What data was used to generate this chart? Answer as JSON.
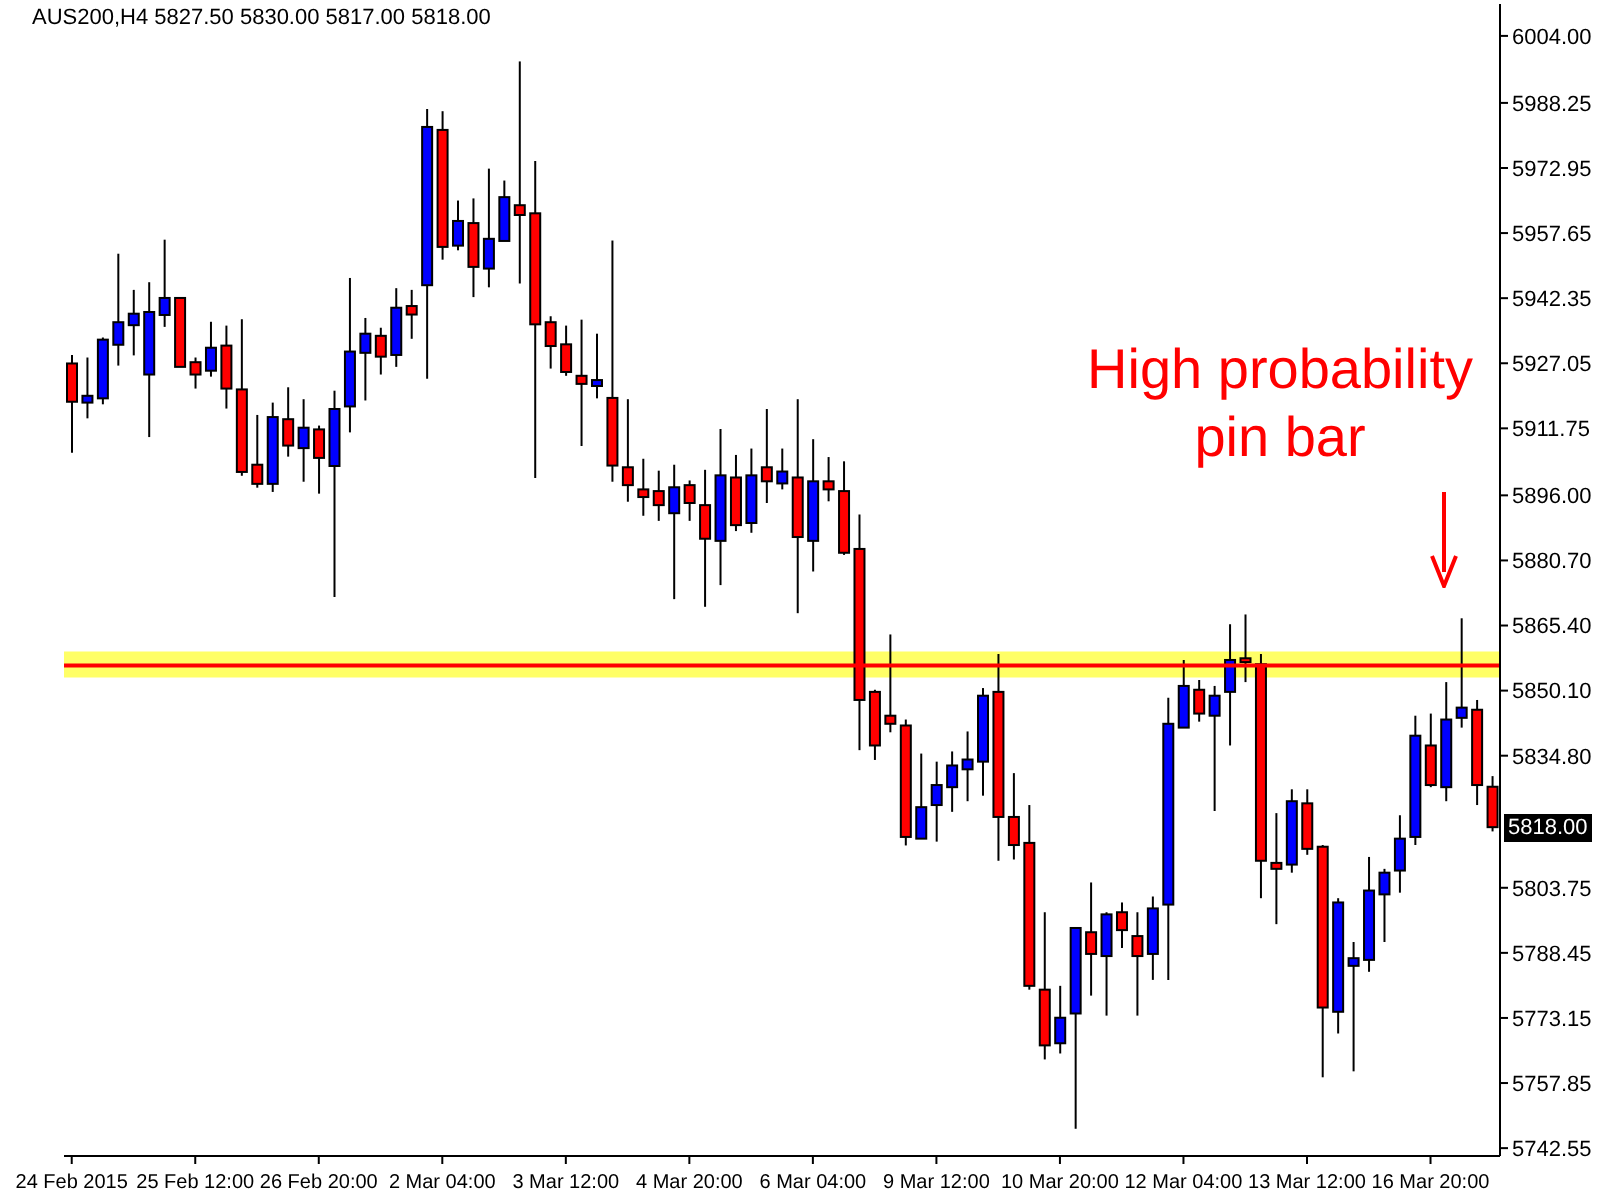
{
  "chart_data": {
    "type": "candlestick",
    "title": "AUS200,H4  5827.50 5830.00 5817.00 5818.00",
    "categories": [
      "24 Feb 2015",
      null,
      null,
      null,
      null,
      null,
      null,
      null,
      "25 Feb 12:00",
      null,
      null,
      null,
      null,
      null,
      null,
      null,
      "26 Feb 20:00",
      null,
      null,
      null,
      null,
      null,
      null,
      null,
      "2 Mar 04:00",
      null,
      null,
      null,
      null,
      null,
      null,
      null,
      "3 Mar 12:00",
      null,
      null,
      null,
      null,
      null,
      null,
      null,
      "4 Mar 20:00",
      null,
      null,
      null,
      null,
      null,
      null,
      null,
      "6 Mar 04:00",
      null,
      null,
      null,
      null,
      null,
      null,
      null,
      "9 Mar 12:00",
      null,
      null,
      null,
      null,
      null,
      null,
      null,
      "10 Mar 20:00",
      null,
      null,
      null,
      null,
      null,
      null,
      null,
      "12 Mar 04:00",
      null,
      null,
      null,
      null,
      null,
      null,
      null,
      "13 Mar 12:00",
      null,
      null,
      null,
      null,
      null,
      null,
      null,
      "16 Mar 20:00",
      null,
      null,
      null,
      null
    ],
    "ohlc": [
      [
        5927,
        5929,
        5906,
        5918
      ],
      [
        5917.8,
        5928.4,
        5914.1,
        5919.4
      ],
      [
        5918.8,
        5933.1,
        5917.4,
        5932.6
      ],
      [
        5931.4,
        5952.8,
        5926.5,
        5936.7
      ],
      [
        5936,
        5944.3,
        5928.9,
        5938.7
      ],
      [
        5924.4,
        5946.1,
        5909.7,
        5939.1
      ],
      [
        5938.4,
        5956.1,
        5935.6,
        5942.4
      ],
      [
        5942.4,
        5942.4,
        5926.2,
        5926.2
      ],
      [
        5927.3,
        5928.4,
        5921.1,
        5924.4
      ],
      [
        5925.3,
        5936.8,
        5923.9,
        5930.7
      ],
      [
        5931.2,
        5935.9,
        5916.4,
        5921.1
      ],
      [
        5920.9,
        5937.4,
        5900.6,
        5901.5
      ],
      [
        5903.2,
        5914.9,
        5897.8,
        5898.7
      ],
      [
        5898.7,
        5917.8,
        5896.8,
        5914.4
      ],
      [
        5913.9,
        5921.4,
        5905.1,
        5907.7
      ],
      [
        5907.1,
        5918.6,
        5899.2,
        5911.9
      ],
      [
        5911.5,
        5912.4,
        5896.4,
        5904.8
      ],
      [
        5902.9,
        5920.6,
        5872.1,
        5916.3
      ],
      [
        5916.9,
        5947.1,
        5910.8,
        5929.8
      ],
      [
        5929.5,
        5937.7,
        5918.3,
        5934
      ],
      [
        5933.5,
        5935.4,
        5924.4,
        5928.6
      ],
      [
        5929,
        5944.7,
        5926.2,
        5940.1
      ],
      [
        5940.5,
        5944.3,
        5932.8,
        5938.5
      ],
      [
        5945.4,
        5986.8,
        5923.4,
        5982.6
      ],
      [
        5981.9,
        5986.3,
        5951.4,
        5954.4
      ],
      [
        5954.7,
        5965.3,
        5953.6,
        5960.5
      ],
      [
        5960,
        5965.8,
        5942.6,
        5949.7
      ],
      [
        5949.3,
        5972.8,
        5944.9,
        5956.3
      ],
      [
        5955.8,
        5970,
        5955.8,
        5966.1
      ],
      [
        5964.2,
        5998,
        5945.8,
        5961.9
      ],
      [
        5962.3,
        5974.6,
        5900.1,
        5936.2
      ],
      [
        5936.7,
        5938.1,
        5925.8,
        5931.1
      ],
      [
        5931.5,
        5935.9,
        5924.1,
        5925
      ],
      [
        5924.1,
        5937.3,
        5907.6,
        5922.2
      ],
      [
        5921.7,
        5934,
        5918.8,
        5923.1
      ],
      [
        5918.9,
        5955.9,
        5899.2,
        5903
      ],
      [
        5902.6,
        5918.6,
        5894.5,
        5898.4
      ],
      [
        5897.4,
        5904.6,
        5891.2,
        5895.6
      ],
      [
        5897,
        5901.8,
        5890,
        5893.7
      ],
      [
        5891.8,
        5903.2,
        5871.6,
        5897.9
      ],
      [
        5898.4,
        5899.5,
        5890,
        5894.2
      ],
      [
        5893.7,
        5902,
        5869.8,
        5885.8
      ],
      [
        5885.3,
        5911.6,
        5874.9,
        5900.7
      ],
      [
        5900.2,
        5905.5,
        5887.6,
        5889
      ],
      [
        5889.5,
        5907,
        5887.2,
        5900.7
      ],
      [
        5902.6,
        5916.3,
        5894.2,
        5899.3
      ],
      [
        5898.8,
        5907,
        5897.4,
        5901.6
      ],
      [
        5900.2,
        5918.6,
        5868.3,
        5886.2
      ],
      [
        5885.3,
        5909.2,
        5878.1,
        5899.3
      ],
      [
        5899.3,
        5905,
        5894.6,
        5897.4
      ],
      [
        5897,
        5904,
        5882,
        5882.5
      ],
      [
        5883.4,
        5891.5,
        5836.1,
        5847.9
      ],
      [
        5849.8,
        5850.3,
        5833.8,
        5837.2
      ],
      [
        5844.2,
        5863.3,
        5840.3,
        5842.3
      ],
      [
        5841.9,
        5843.3,
        5813.7,
        5815.7
      ],
      [
        5815.3,
        5835.3,
        5815.3,
        5822.7
      ],
      [
        5823.2,
        5833.4,
        5814.6,
        5827.9
      ],
      [
        5827.4,
        5835.8,
        5821.6,
        5832.5
      ],
      [
        5831.6,
        5840.5,
        5824.1,
        5833.9
      ],
      [
        5833.4,
        5850.7,
        5825.4,
        5848.9
      ],
      [
        5849.8,
        5858.7,
        5810.1,
        5820.4
      ],
      [
        5820.4,
        5830.7,
        5810.4,
        5813.8
      ],
      [
        5814.3,
        5823.2,
        5779.8,
        5780.7
      ],
      [
        5779.8,
        5798,
        5763.4,
        5766.7
      ],
      [
        5767.2,
        5780.7,
        5764.8,
        5773.2
      ],
      [
        5774.2,
        5794.3,
        5747.1,
        5794.3
      ],
      [
        5793.3,
        5805,
        5778.4,
        5788.2
      ],
      [
        5787.7,
        5798,
        5773.7,
        5797.5
      ],
      [
        5798,
        5800.3,
        5789.6,
        5793.8
      ],
      [
        5792.4,
        5798,
        5773.7,
        5787.7
      ],
      [
        5788.2,
        5801.7,
        5782.1,
        5798.9
      ],
      [
        5799.8,
        5848.4,
        5782.1,
        5842.3
      ],
      [
        5841.4,
        5857.3,
        5841.4,
        5851.2
      ],
      [
        5850.3,
        5852.6,
        5842.8,
        5844.7
      ],
      [
        5844.2,
        5851.2,
        5821.8,
        5848.9
      ],
      [
        5849.8,
        5865.7,
        5837.2,
        5857.3
      ],
      [
        5857.7,
        5868,
        5852.1,
        5856.8
      ],
      [
        5856.3,
        5858.7,
        5801.3,
        5810.1
      ],
      [
        5809.6,
        5821.3,
        5795.2,
        5808.2
      ],
      [
        5809.2,
        5826.9,
        5807.3,
        5824.1
      ],
      [
        5823.6,
        5826.9,
        5811.5,
        5812.9
      ],
      [
        5813.4,
        5813.8,
        5759.2,
        5775.6
      ],
      [
        5774.6,
        5801.3,
        5769.5,
        5800.3
      ],
      [
        5785.4,
        5791,
        5760.6,
        5787.2
      ],
      [
        5786.8,
        5811,
        5784,
        5803.1
      ],
      [
        5802.2,
        5808.2,
        5791,
        5807.3
      ],
      [
        5807.8,
        5820.8,
        5802.6,
        5815.3
      ],
      [
        5815.7,
        5844.2,
        5813.8,
        5839.5
      ],
      [
        5837.2,
        5844.7,
        5827.4,
        5827.9
      ],
      [
        5827.4,
        5852.1,
        5824.1,
        5843.3
      ],
      [
        5843.7,
        5867.1,
        5841.4,
        5846.1
      ],
      [
        5845.6,
        5847.9,
        5823.2,
        5827.9
      ],
      [
        5827.5,
        5830,
        5817,
        5818
      ]
    ],
    "colors": [
      "#ff0000",
      "#0000ff",
      "#0000ff",
      "#0000ff",
      "#0000ff",
      "#0000ff",
      "#0000ff",
      "#ff0000",
      "#ff0000",
      "#0000ff",
      "#ff0000",
      "#ff0000",
      "#ff0000",
      "#0000ff",
      "#ff0000",
      "#0000ff",
      "#ff0000",
      "#0000ff",
      "#0000ff",
      "#0000ff",
      "#ff0000",
      "#0000ff",
      "#ff0000",
      "#0000ff",
      "#ff0000",
      "#0000ff",
      "#ff0000",
      "#0000ff",
      "#0000ff",
      "#ff0000",
      "#ff0000",
      "#ff0000",
      "#ff0000",
      "#ff0000",
      "#0000ff",
      "#ff0000",
      "#ff0000",
      "#ff0000",
      "#ff0000",
      "#0000ff",
      "#ff0000",
      "#ff0000",
      "#0000ff",
      "#ff0000",
      "#0000ff",
      "#ff0000",
      "#0000ff",
      "#ff0000",
      "#0000ff",
      "#ff0000",
      "#ff0000",
      "#ff0000",
      "#ff0000",
      "#ff0000",
      "#ff0000",
      "#0000ff",
      "#0000ff",
      "#0000ff",
      "#0000ff",
      "#0000ff",
      "#ff0000",
      "#ff0000",
      "#ff0000",
      "#ff0000",
      "#0000ff",
      "#0000ff",
      "#ff0000",
      "#0000ff",
      "#ff0000",
      "#ff0000",
      "#0000ff",
      "#0000ff",
      "#0000ff",
      "#ff0000",
      "#0000ff",
      "#0000ff",
      "#ff0000",
      "#ff0000",
      "#ff0000",
      "#0000ff",
      "#ff0000",
      "#ff0000",
      "#0000ff",
      "#0000ff",
      "#0000ff",
      "#0000ff",
      "#0000ff",
      "#0000ff",
      "#ff0000",
      "#0000ff",
      "#0000ff",
      "#ff0000",
      "#ff0000"
    ],
    "ylim": [
      5740.7,
      6011.5
    ],
    "yticks": [
      {
        "value": 6004,
        "label": "6004.00"
      },
      {
        "value": 5988.25,
        "label": "5988.25"
      },
      {
        "value": 5972.95,
        "label": "5972.95"
      },
      {
        "value": 5957.65,
        "label": "5957.65"
      },
      {
        "value": 5942.35,
        "label": "5942.35"
      },
      {
        "value": 5927.05,
        "label": "5927.05"
      },
      {
        "value": 5911.75,
        "label": "5911.75"
      },
      {
        "value": 5896,
        "label": "5896.00"
      },
      {
        "value": 5880.7,
        "label": "5880.70"
      },
      {
        "value": 5865.4,
        "label": "5865.40"
      },
      {
        "value": 5850.1,
        "label": "5850.10"
      },
      {
        "value": 5834.8,
        "label": "5834.80"
      },
      {
        "value": 5803.75,
        "label": "5803.75"
      },
      {
        "value": 5788.45,
        "label": "5788.45"
      },
      {
        "value": 5773.15,
        "label": "5773.15"
      },
      {
        "value": 5757.85,
        "label": "5757.85"
      },
      {
        "value": 5742.55,
        "label": "5742.55"
      }
    ],
    "ref_lines": [
      {
        "axis": "y",
        "value": 5856,
        "color": "#ff0000"
      }
    ],
    "bands": [
      {
        "axis": "y",
        "from": 5853.2,
        "to": 5859.3,
        "color": "#ffff66"
      }
    ],
    "annotations": [
      "High probability pin bar",
      {
        "text": "5818.00",
        "y": 5818
      }
    ],
    "grid": false,
    "legend": false
  }
}
